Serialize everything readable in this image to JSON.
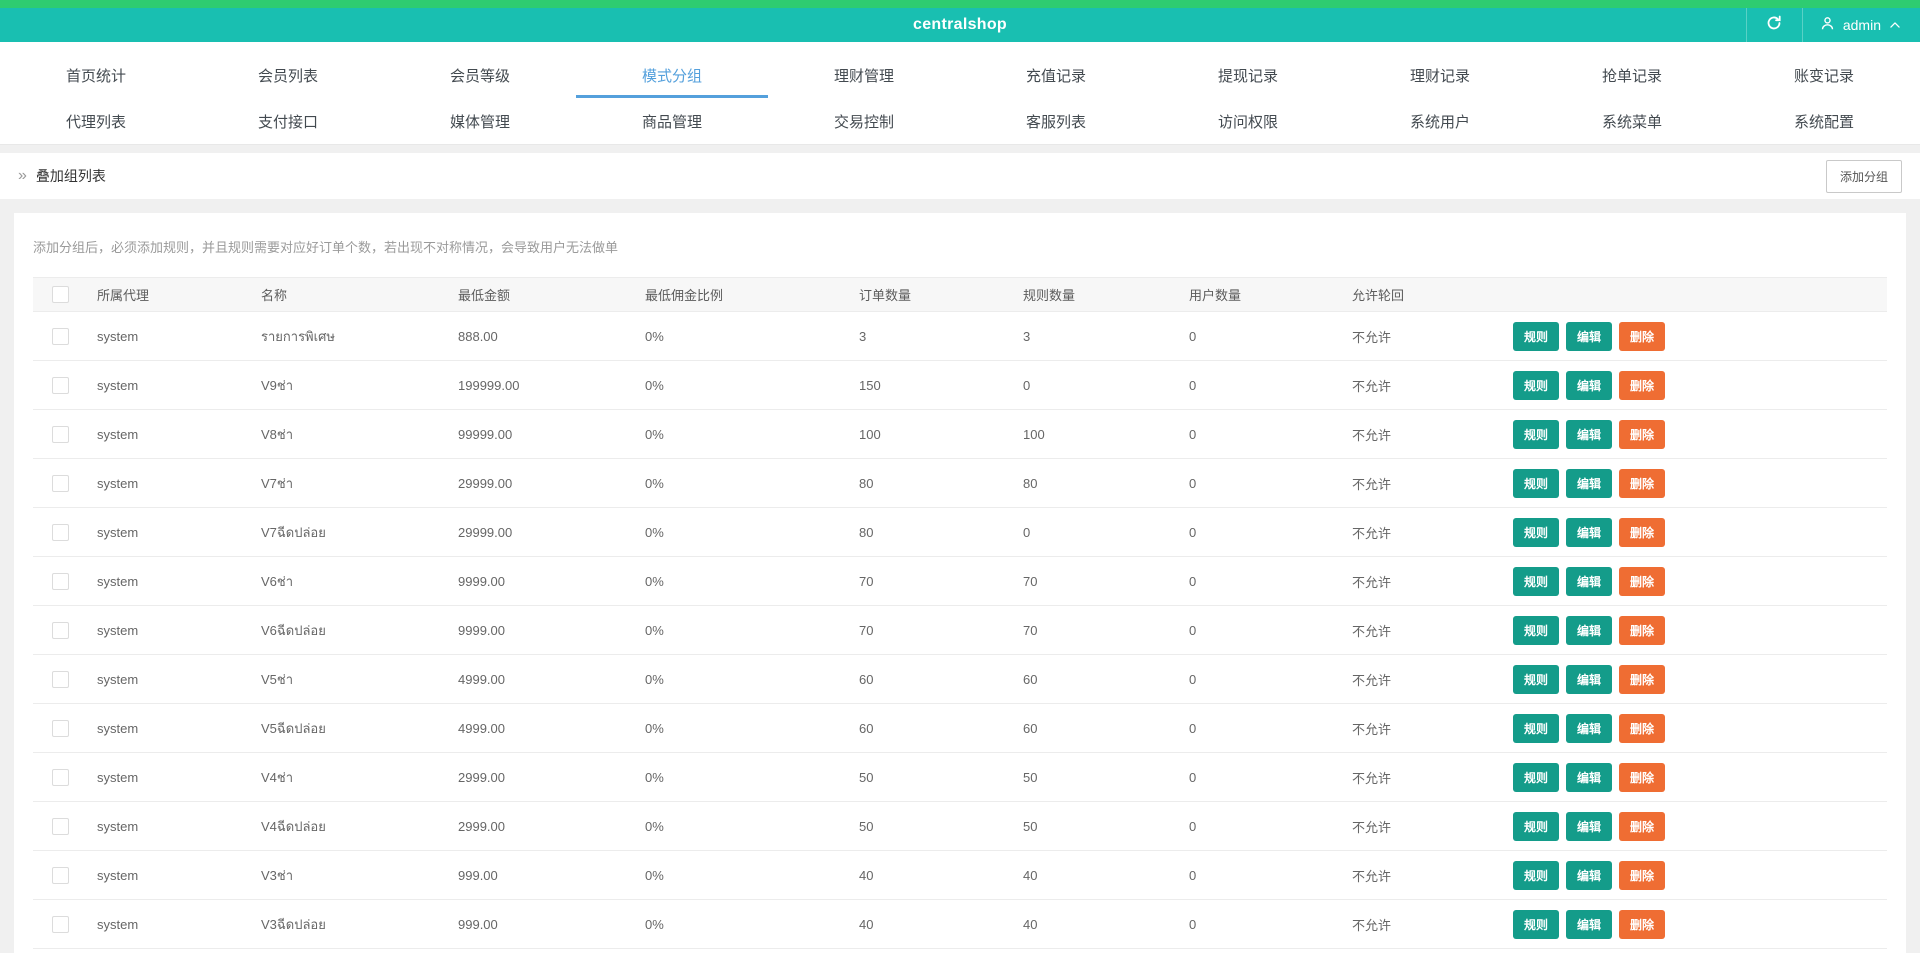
{
  "colors": {
    "c_strip": "#2ecc71",
    "c_header": "#19bfb1",
    "c_active": "#54a0dc",
    "c_btn_teal": "#149c8a",
    "c_btn_orange": "#ef6d33"
  },
  "header": {
    "title": "centralshop",
    "user": "admin",
    "icons": {
      "refresh": "refresh-circular-arrow",
      "user": "person-outline",
      "chevron": "chevron-up"
    }
  },
  "nav": {
    "active_tab": "模式分组",
    "row1": [
      "首页统计",
      "会员列表",
      "会员等级",
      "模式分组",
      "理财管理",
      "充值记录",
      "提现记录",
      "理财记录",
      "抢单记录",
      "账变记录"
    ],
    "row2": [
      "代理列表",
      "支付接口",
      "媒体管理",
      "商品管理",
      "交易控制",
      "客服列表",
      "访问权限",
      "系统用户",
      "系统菜单",
      "系统配置"
    ]
  },
  "breadcrumb": {
    "icon_glyph": "»",
    "title": "叠加组列表",
    "add_button": "添加分组"
  },
  "hint": "添加分组后，必须添加规则，并且规则需要对应好订单个数，若出现不对称情况，会导致用户无法做单",
  "table": {
    "headers": [
      "所属代理",
      "名称",
      "最低金额",
      "最低佣金比例",
      "订单数量",
      "规则数量",
      "用户数量",
      "允许轮回"
    ],
    "action_labels": {
      "rules": "规则",
      "edit": "编辑",
      "delete": "删除"
    },
    "rows": [
      {
        "agent": "system",
        "name": "รายการพิเศษ",
        "min_amount": "888.00",
        "min_commission": "0%",
        "orders": "3",
        "rules": "3",
        "users": "0",
        "allow_loop": "不允许"
      },
      {
        "agent": "system",
        "name": "V9ช่า",
        "min_amount": "199999.00",
        "min_commission": "0%",
        "orders": "150",
        "rules": "0",
        "users": "0",
        "allow_loop": "不允许"
      },
      {
        "agent": "system",
        "name": "V8ช่า",
        "min_amount": "99999.00",
        "min_commission": "0%",
        "orders": "100",
        "rules": "100",
        "users": "0",
        "allow_loop": "不允许"
      },
      {
        "agent": "system",
        "name": "V7ช่า",
        "min_amount": "29999.00",
        "min_commission": "0%",
        "orders": "80",
        "rules": "80",
        "users": "0",
        "allow_loop": "不允许"
      },
      {
        "agent": "system",
        "name": "V7ฉีดปล่อย",
        "min_amount": "29999.00",
        "min_commission": "0%",
        "orders": "80",
        "rules": "0",
        "users": "0",
        "allow_loop": "不允许"
      },
      {
        "agent": "system",
        "name": "V6ช่า",
        "min_amount": "9999.00",
        "min_commission": "0%",
        "orders": "70",
        "rules": "70",
        "users": "0",
        "allow_loop": "不允许"
      },
      {
        "agent": "system",
        "name": "V6ฉีดปล่อย",
        "min_amount": "9999.00",
        "min_commission": "0%",
        "orders": "70",
        "rules": "70",
        "users": "0",
        "allow_loop": "不允许"
      },
      {
        "agent": "system",
        "name": "V5ช่า",
        "min_amount": "4999.00",
        "min_commission": "0%",
        "orders": "60",
        "rules": "60",
        "users": "0",
        "allow_loop": "不允许"
      },
      {
        "agent": "system",
        "name": "V5ฉีดปล่อย",
        "min_amount": "4999.00",
        "min_commission": "0%",
        "orders": "60",
        "rules": "60",
        "users": "0",
        "allow_loop": "不允许"
      },
      {
        "agent": "system",
        "name": "V4ช่า",
        "min_amount": "2999.00",
        "min_commission": "0%",
        "orders": "50",
        "rules": "50",
        "users": "0",
        "allow_loop": "不允许"
      },
      {
        "agent": "system",
        "name": "V4ฉีดปล่อย",
        "min_amount": "2999.00",
        "min_commission": "0%",
        "orders": "50",
        "rules": "50",
        "users": "0",
        "allow_loop": "不允许"
      },
      {
        "agent": "system",
        "name": "V3ช่า",
        "min_amount": "999.00",
        "min_commission": "0%",
        "orders": "40",
        "rules": "40",
        "users": "0",
        "allow_loop": "不允许"
      },
      {
        "agent": "system",
        "name": "V3ฉีดปล่อย",
        "min_amount": "999.00",
        "min_commission": "0%",
        "orders": "40",
        "rules": "40",
        "users": "0",
        "allow_loop": "不允许"
      }
    ]
  }
}
